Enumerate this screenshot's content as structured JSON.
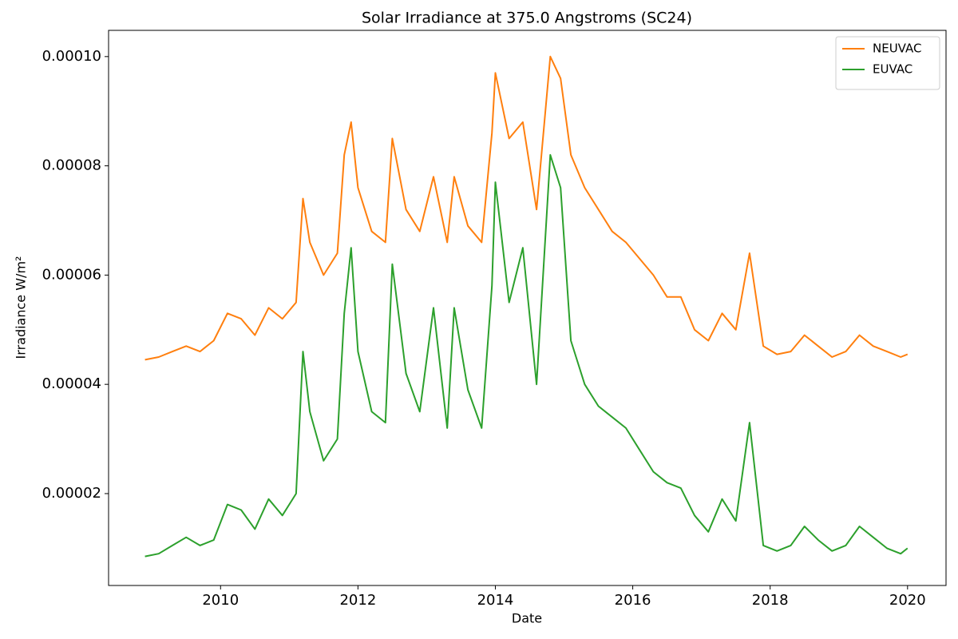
{
  "chart_data": {
    "type": "line",
    "title": "Solar Irradiance at 375.0 Angstroms (SC24)",
    "x_label": "Date",
    "y_label": "Irradiance W/m²",
    "x": [
      2008.9,
      2009.1,
      2009.3,
      2009.5,
      2009.7,
      2009.9,
      2010.1,
      2010.3,
      2010.5,
      2010.7,
      2010.9,
      2011.1,
      2011.2,
      2011.3,
      2011.5,
      2011.7,
      2011.8,
      2011.9,
      2012.0,
      2012.2,
      2012.4,
      2012.5,
      2012.7,
      2012.9,
      2013.1,
      2013.3,
      2013.4,
      2013.6,
      2013.8,
      2013.95,
      2014.0,
      2014.2,
      2014.4,
      2014.6,
      2014.8,
      2014.95,
      2015.1,
      2015.3,
      2015.5,
      2015.7,
      2015.9,
      2016.1,
      2016.3,
      2016.5,
      2016.7,
      2016.9,
      2017.1,
      2017.3,
      2017.5,
      2017.7,
      2017.9,
      2018.1,
      2018.3,
      2018.5,
      2018.7,
      2018.9,
      2019.1,
      2019.3,
      2019.5,
      2019.7,
      2019.9,
      2020.0
    ],
    "series": [
      {
        "name": "NEUVAC",
        "color": "#ff7f0e",
        "values": [
          4.45e-05,
          4.5e-05,
          4.6e-05,
          4.7e-05,
          4.6e-05,
          4.8e-05,
          5.3e-05,
          5.2e-05,
          4.9e-05,
          5.4e-05,
          5.2e-05,
          5.5e-05,
          7.4e-05,
          6.6e-05,
          6e-05,
          6.4e-05,
          8.2e-05,
          8.8e-05,
          7.6e-05,
          6.8e-05,
          6.6e-05,
          8.5e-05,
          7.2e-05,
          6.8e-05,
          7.8e-05,
          6.6e-05,
          7.8e-05,
          6.9e-05,
          6.6e-05,
          8.6e-05,
          9.7e-05,
          8.5e-05,
          8.8e-05,
          7.2e-05,
          0.0001,
          9.6e-05,
          8.2e-05,
          7.6e-05,
          7.2e-05,
          6.8e-05,
          6.6e-05,
          6.3e-05,
          6e-05,
          5.6e-05,
          5.6e-05,
          5e-05,
          4.8e-05,
          5.3e-05,
          5e-05,
          6.4e-05,
          4.7e-05,
          4.55e-05,
          4.6e-05,
          4.9e-05,
          4.7e-05,
          4.5e-05,
          4.6e-05,
          4.9e-05,
          4.7e-05,
          4.6e-05,
          4.5e-05,
          4.55e-05
        ]
      },
      {
        "name": "EUVAC",
        "color": "#2ca02c",
        "values": [
          8.5e-06,
          9e-06,
          1.05e-05,
          1.2e-05,
          1.05e-05,
          1.15e-05,
          1.8e-05,
          1.7e-05,
          1.35e-05,
          1.9e-05,
          1.6e-05,
          2e-05,
          4.6e-05,
          3.5e-05,
          2.6e-05,
          3e-05,
          5.3e-05,
          6.5e-05,
          4.6e-05,
          3.5e-05,
          3.3e-05,
          6.2e-05,
          4.2e-05,
          3.5e-05,
          5.4e-05,
          3.2e-05,
          5.4e-05,
          3.9e-05,
          3.2e-05,
          5.8e-05,
          7.7e-05,
          5.5e-05,
          6.5e-05,
          4e-05,
          8.2e-05,
          7.6e-05,
          4.8e-05,
          4e-05,
          3.6e-05,
          3.4e-05,
          3.2e-05,
          2.8e-05,
          2.4e-05,
          2.2e-05,
          2.1e-05,
          1.6e-05,
          1.3e-05,
          1.9e-05,
          1.5e-05,
          3.3e-05,
          1.05e-05,
          9.5e-06,
          1.05e-05,
          1.4e-05,
          1.15e-05,
          9.5e-06,
          1.05e-05,
          1.4e-05,
          1.2e-05,
          1e-05,
          9e-06,
          1e-05
        ]
      }
    ],
    "xlim": [
      2008.37,
      2020.56
    ],
    "xticks": [
      2010,
      2012,
      2014,
      2016,
      2018,
      2020
    ],
    "ylim": [
      3.18e-06,
      0.0001048
    ],
    "yticks": [
      {
        "value": 2e-05,
        "label": "0.00002"
      },
      {
        "value": 4e-05,
        "label": "0.00004"
      },
      {
        "value": 6e-05,
        "label": "0.00006"
      },
      {
        "value": 8e-05,
        "label": "0.00008"
      },
      {
        "value": 0.0001,
        "label": "0.00010"
      }
    ],
    "legend": "upper right",
    "grid": false
  }
}
